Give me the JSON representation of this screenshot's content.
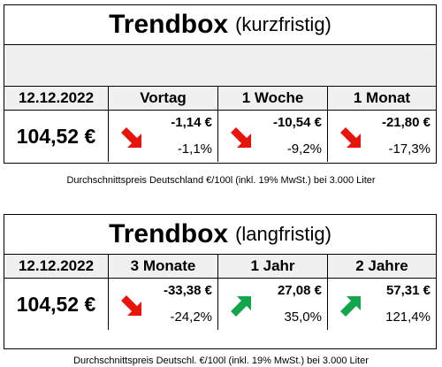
{
  "colors": {
    "down": "#e8140c",
    "up": "#12a54a",
    "header_bg": "#f0f0f0"
  },
  "box1": {
    "title_main": "Trendbox",
    "title_sub": "(kurzfristig)",
    "date": "12.12.2022",
    "price": "104,52 €",
    "columns": [
      {
        "header": "Vortag",
        "abs": "-1,14 €",
        "pct": "-1,1%",
        "trend": "down",
        "icon": "arrow-down-right-icon"
      },
      {
        "header": "1 Woche",
        "abs": "-10,54 €",
        "pct": "-9,2%",
        "trend": "down",
        "icon": "arrow-down-right-icon"
      },
      {
        "header": "1 Monat",
        "abs": "-21,80 €",
        "pct": "-17,3%",
        "trend": "down",
        "icon": "arrow-down-right-icon"
      }
    ],
    "note": "Durchschnittspreis Deutschland €/100l (inkl. 19% MwSt.) bei 3.000 Liter"
  },
  "box2": {
    "title_main": "Trendbox",
    "title_sub": "(langfristig)",
    "date": "12.12.2022",
    "price": "104,52 €",
    "columns": [
      {
        "header": "3 Monate",
        "abs": "-33,38 €",
        "pct": "-24,2%",
        "trend": "down",
        "icon": "arrow-down-right-icon"
      },
      {
        "header": "1 Jahr",
        "abs": "27,08 €",
        "pct": "35,0%",
        "trend": "up",
        "icon": "arrow-up-right-icon"
      },
      {
        "header": "2 Jahre",
        "abs": "57,31 €",
        "pct": "121,4%",
        "trend": "up",
        "icon": "arrow-up-right-icon"
      }
    ],
    "note": "Durchschnittspreis Deutschl. €/100l (inkl. 19% MwSt.) bei 3.000 Liter"
  }
}
